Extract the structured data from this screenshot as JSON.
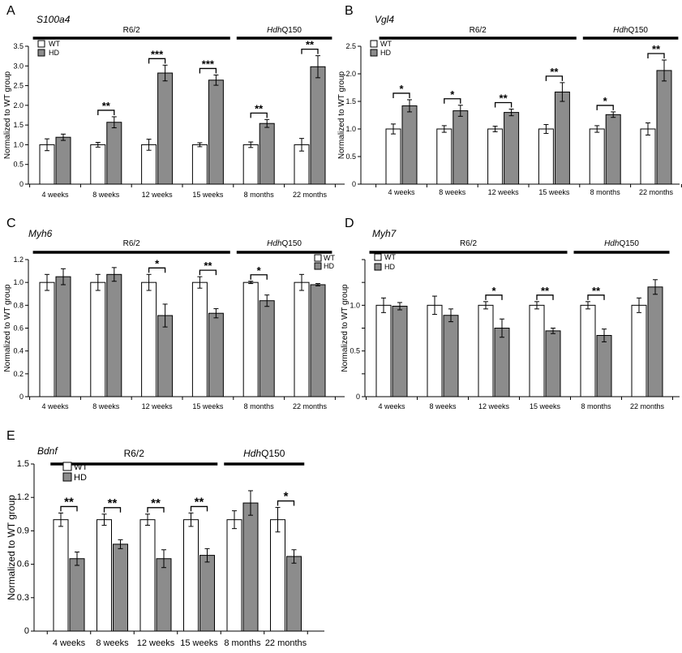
{
  "chart_data": [
    {
      "panel": "A",
      "gene": "S100a4",
      "type": "bar",
      "ylabel": "Normalized to WT group",
      "ylim": [
        0,
        3.5
      ],
      "yticks": [
        "0",
        "0.5",
        "1.0",
        "1.5",
        "2.0",
        "2.5",
        "3.0",
        "3.5"
      ],
      "categories": [
        "4 weeks",
        "8 weeks",
        "12 weeks",
        "15 weeks",
        "8 months",
        "22 months"
      ],
      "groups": [
        {
          "label": "R6/2",
          "prefix": "",
          "start": 0,
          "end": 3
        },
        {
          "label": "Q150",
          "prefix": "Hdh",
          "start": 4,
          "end": 5
        }
      ],
      "legend": [
        "WT",
        "HD"
      ],
      "series": [
        {
          "name": "WT",
          "values": [
            1.0,
            1.0,
            1.0,
            1.0,
            1.0,
            1.0
          ],
          "errors": [
            0.15,
            0.06,
            0.14,
            0.05,
            0.07,
            0.16
          ]
        },
        {
          "name": "HD",
          "values": [
            1.19,
            1.57,
            2.82,
            2.64,
            1.54,
            2.98
          ],
          "errors": [
            0.08,
            0.14,
            0.2,
            0.13,
            0.1,
            0.28
          ]
        }
      ],
      "significance": [
        "",
        "**",
        "***",
        "***",
        "**",
        "**"
      ]
    },
    {
      "panel": "B",
      "gene": "Vgl4",
      "type": "bar",
      "ylabel": "Normalized to WT group",
      "ylim": [
        0,
        2.5
      ],
      "yticks": [
        "0",
        "0.5",
        "1.0",
        "1.5",
        "2.0",
        "2.5"
      ],
      "categories": [
        "4 weeks",
        "8 weeks",
        "12 weeks",
        "15 weeks",
        "8 months",
        "22 months"
      ],
      "groups": [
        {
          "label": "R6/2",
          "prefix": "",
          "start": 0,
          "end": 3
        },
        {
          "label": "Q150",
          "prefix": "Hdh",
          "start": 4,
          "end": 5
        }
      ],
      "legend": [
        "WT",
        "HD"
      ],
      "series": [
        {
          "name": "WT",
          "values": [
            1.0,
            1.0,
            1.0,
            1.0,
            1.0,
            1.0
          ],
          "errors": [
            0.09,
            0.06,
            0.05,
            0.08,
            0.06,
            0.11
          ]
        },
        {
          "name": "HD",
          "values": [
            1.42,
            1.33,
            1.3,
            1.67,
            1.26,
            2.06
          ],
          "errors": [
            0.11,
            0.1,
            0.06,
            0.17,
            0.05,
            0.19
          ]
        }
      ],
      "significance": [
        "*",
        "*",
        "**",
        "**",
        "*",
        "**"
      ]
    },
    {
      "panel": "C",
      "gene": "Myh6",
      "type": "bar",
      "ylabel": "Normalized to WT group",
      "ylim": [
        0,
        1.2
      ],
      "yticks": [
        "0",
        "0.2",
        "0.4",
        "0.6",
        "0.8",
        "1.0",
        "1.2"
      ],
      "categories": [
        "4 weeks",
        "8 weeks",
        "12 weeks",
        "15 weeks",
        "8 months",
        "22 months"
      ],
      "groups": [
        {
          "label": "R6/2",
          "prefix": "",
          "start": 0,
          "end": 3
        },
        {
          "label": "Q150",
          "prefix": "Hdh",
          "start": 4,
          "end": 5
        }
      ],
      "legend": [
        "WT",
        "HD"
      ],
      "series": [
        {
          "name": "WT",
          "values": [
            1.0,
            1.0,
            1.0,
            1.0,
            1.0,
            1.0
          ],
          "errors": [
            0.07,
            0.07,
            0.07,
            0.05,
            0.01,
            0.07
          ]
        },
        {
          "name": "HD",
          "values": [
            1.05,
            1.07,
            0.71,
            0.73,
            0.84,
            0.98
          ],
          "errors": [
            0.07,
            0.06,
            0.1,
            0.04,
            0.05,
            0.01
          ]
        }
      ],
      "significance": [
        "",
        "",
        "*",
        "**",
        "*",
        ""
      ]
    },
    {
      "panel": "D",
      "gene": "Myh7",
      "type": "bar",
      "ylabel": "Normalized to WT group",
      "ylim": [
        0,
        1.5
      ],
      "yticks": [
        "0",
        "",
        "0.5",
        "",
        "1.0",
        "",
        ""
      ],
      "categories": [
        "4 weeks",
        "8 weeks",
        "12 weeks",
        "15 weeks",
        "8 months",
        "22 months"
      ],
      "groups": [
        {
          "label": "R6/2",
          "prefix": "",
          "start": 0,
          "end": 3
        },
        {
          "label": "Q150",
          "prefix": "Hdh",
          "start": 4,
          "end": 5
        }
      ],
      "legend": [
        "WT",
        "HD"
      ],
      "series": [
        {
          "name": "WT",
          "values": [
            1.0,
            1.0,
            1.0,
            1.0,
            1.0,
            1.0
          ],
          "errors": [
            0.08,
            0.1,
            0.04,
            0.04,
            0.04,
            0.08
          ]
        },
        {
          "name": "HD",
          "values": [
            0.99,
            0.89,
            0.75,
            0.72,
            0.67,
            1.2
          ],
          "errors": [
            0.04,
            0.07,
            0.1,
            0.03,
            0.07,
            0.08
          ]
        }
      ],
      "significance": [
        "",
        "",
        "*",
        "**",
        "**",
        ""
      ]
    },
    {
      "panel": "E",
      "gene": "Bdnf",
      "type": "bar",
      "ylabel": "Normalized to WT group",
      "ylim": [
        0,
        1.5
      ],
      "yticks": [
        "0",
        "0.3",
        "0.6",
        "0.9",
        "1.2",
        "1.5"
      ],
      "categories": [
        "4 weeks",
        "8 weeks",
        "12 weeks",
        "15 weeks",
        "8 months",
        "22 months"
      ],
      "groups": [
        {
          "label": "R6/2",
          "prefix": "",
          "start": 0,
          "end": 3
        },
        {
          "label": "Q150",
          "prefix": "Hdh",
          "start": 4,
          "end": 5
        }
      ],
      "legend": [
        "WT",
        "HD"
      ],
      "series": [
        {
          "name": "WT",
          "values": [
            1.0,
            1.0,
            1.0,
            1.0,
            1.0,
            1.0
          ],
          "errors": [
            0.06,
            0.05,
            0.05,
            0.06,
            0.08,
            0.11
          ]
        },
        {
          "name": "HD",
          "values": [
            0.65,
            0.78,
            0.65,
            0.68,
            1.15,
            0.67
          ],
          "errors": [
            0.06,
            0.04,
            0.08,
            0.06,
            0.11,
            0.06
          ]
        }
      ],
      "significance": [
        "**",
        "**",
        "**",
        "**",
        "",
        "*"
      ]
    }
  ]
}
